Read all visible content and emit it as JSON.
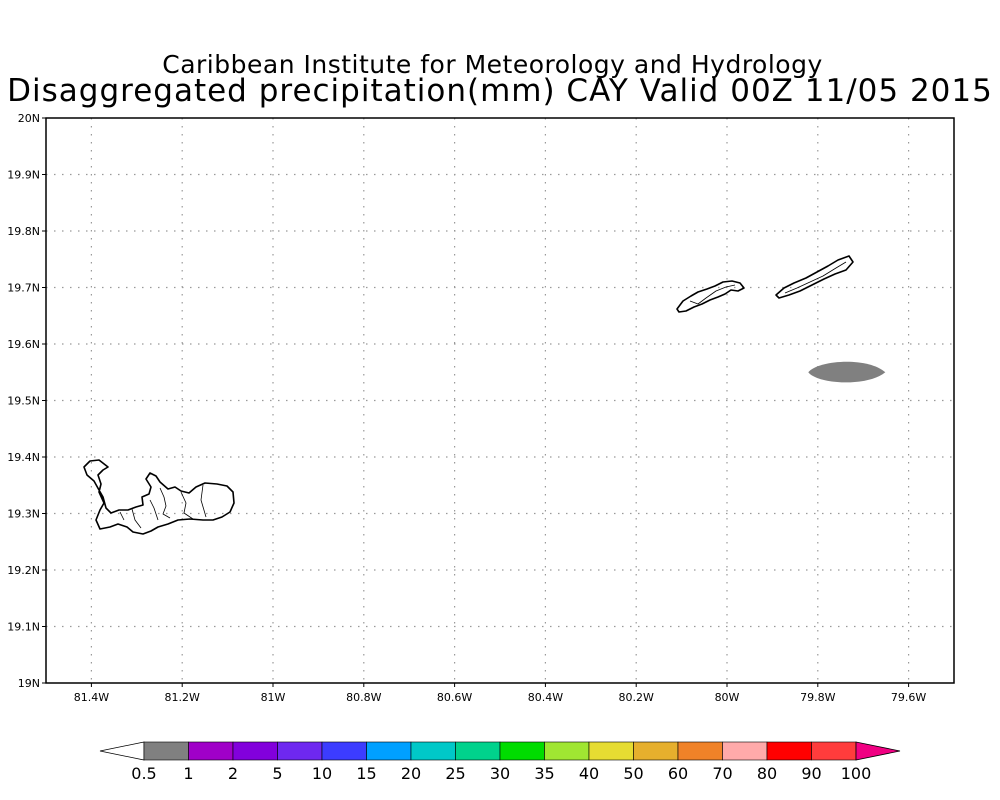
{
  "header": {
    "line1": "Caribbean Institute for Meteorology and Hydrology",
    "line2": "Disaggregated precipitation(mm) CAY Valid 00Z 11/05 2015"
  },
  "map": {
    "lon_range": [
      -81.5,
      -79.5
    ],
    "lat_range": [
      19.0,
      20.0
    ],
    "grid": "dotted",
    "lon_ticks": [
      {
        "value": -81.4,
        "label": "81.4W"
      },
      {
        "value": -81.2,
        "label": "81.2W"
      },
      {
        "value": -81.0,
        "label": "81W"
      },
      {
        "value": -80.8,
        "label": "80.8W"
      },
      {
        "value": -80.6,
        "label": "80.6W"
      },
      {
        "value": -80.4,
        "label": "80.4W"
      },
      {
        "value": -80.2,
        "label": "80.2W"
      },
      {
        "value": -80.0,
        "label": "80W"
      },
      {
        "value": -79.8,
        "label": "79.8W"
      },
      {
        "value": -79.6,
        "label": "79.6W"
      }
    ],
    "lat_ticks": [
      {
        "value": 20.0,
        "label": "20N"
      },
      {
        "value": 19.9,
        "label": "19.9N"
      },
      {
        "value": 19.8,
        "label": "19.8N"
      },
      {
        "value": 19.7,
        "label": "19.7N"
      },
      {
        "value": 19.6,
        "label": "19.6N"
      },
      {
        "value": 19.5,
        "label": "19.5N"
      },
      {
        "value": 19.4,
        "label": "19.4N"
      },
      {
        "value": 19.3,
        "label": "19.3N"
      },
      {
        "value": 19.2,
        "label": "19.2N"
      },
      {
        "value": 19.1,
        "label": "19.1N"
      },
      {
        "value": 19.0,
        "label": "19N"
      }
    ],
    "precip_cells": [
      {
        "lon": -79.735,
        "lat": 19.55,
        "value_band": "0.5-1",
        "color": "#808080"
      }
    ],
    "islands": [
      "grand-cayman",
      "little-cayman",
      "cayman-brac"
    ]
  },
  "colorbar": {
    "boundaries": [
      "0.5",
      "1",
      "2",
      "5",
      "10",
      "15",
      "20",
      "25",
      "30",
      "35",
      "40",
      "50",
      "60",
      "70",
      "80",
      "90",
      "100"
    ],
    "colors": [
      "#ffffff",
      "#808080",
      "#a000c8",
      "#8200dc",
      "#6e28f0",
      "#3c3cff",
      "#00a0ff",
      "#00c8c8",
      "#00d28c",
      "#00dc00",
      "#a0e632",
      "#e6dc32",
      "#e6af2d",
      "#f08228",
      "#ffaaaa",
      "#ff0000",
      "#ff3c3c",
      "#f00082"
    ]
  }
}
